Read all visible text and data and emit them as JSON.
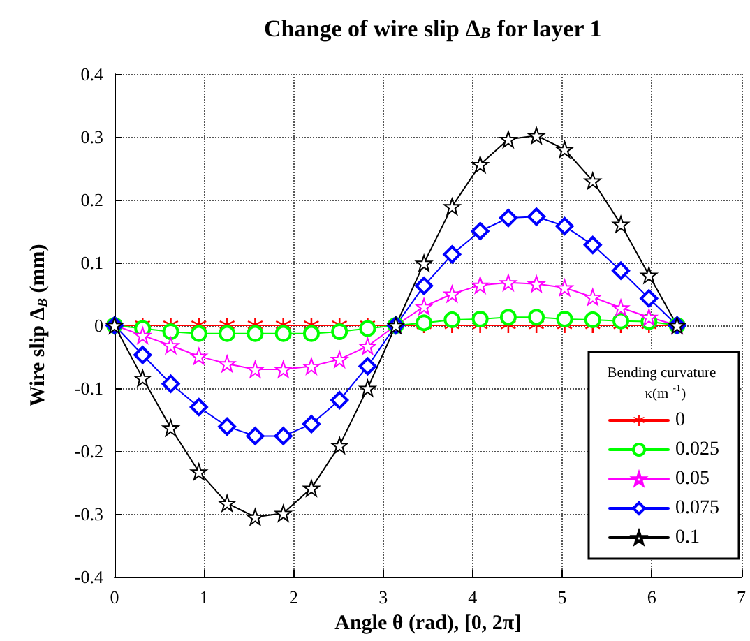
{
  "chart_data": {
    "type": "line",
    "title": "Change of wire slip Δ$_{B}$ for layer 1",
    "xlabel": "Angle θ (rad), [0, 2π]",
    "ylabel": "Wire slip Δ$_{B}$ (mm)",
    "legend_title": "Bending curvature κ(m$^{-1}$)",
    "x": [
      0,
      0.314,
      0.628,
      0.942,
      1.257,
      1.571,
      1.885,
      2.199,
      2.513,
      2.827,
      3.142,
      3.456,
      3.77,
      4.084,
      4.398,
      4.712,
      5.027,
      5.341,
      5.655,
      5.969,
      6.283
    ],
    "series": [
      {
        "name": "0",
        "color": "#ff0000",
        "marker": "cross",
        "values": [
          0,
          0,
          0,
          0,
          0,
          0,
          0,
          0,
          0,
          0,
          0,
          0,
          0,
          0,
          0,
          0,
          0,
          0,
          0,
          0,
          0
        ]
      },
      {
        "name": "0.025",
        "color": "#00ff00",
        "marker": "circle",
        "values": [
          0,
          -0.005,
          -0.01,
          -0.013,
          -0.013,
          -0.013,
          -0.013,
          -0.013,
          -0.01,
          -0.005,
          0,
          0.004,
          0.009,
          0.01,
          0.013,
          0.013,
          0.01,
          0.009,
          0.007,
          0.006,
          0
        ]
      },
      {
        "name": "0.05",
        "color": "#ff00ff",
        "marker": "star",
        "values": [
          0,
          -0.016,
          -0.032,
          -0.049,
          -0.061,
          -0.07,
          -0.07,
          -0.065,
          -0.054,
          -0.033,
          0,
          0.03,
          0.05,
          0.064,
          0.068,
          0.066,
          0.06,
          0.045,
          0.028,
          0.013,
          0
        ]
      },
      {
        "name": "0.075",
        "color": "#0000ff",
        "marker": "diamond",
        "values": [
          0,
          -0.047,
          -0.093,
          -0.13,
          -0.161,
          -0.176,
          -0.176,
          -0.157,
          -0.119,
          -0.065,
          0,
          0.063,
          0.113,
          0.15,
          0.171,
          0.173,
          0.158,
          0.128,
          0.087,
          0.043,
          0
        ]
      },
      {
        "name": "0.1",
        "color": "#000000",
        "marker": "star",
        "values": [
          0,
          -0.084,
          -0.163,
          -0.233,
          -0.283,
          -0.305,
          -0.299,
          -0.259,
          -0.191,
          -0.1,
          0,
          0.099,
          0.189,
          0.256,
          0.296,
          0.302,
          0.28,
          0.23,
          0.161,
          0.08,
          0
        ]
      }
    ],
    "xlim": [
      0,
      7
    ],
    "xticks": [
      0,
      1,
      2,
      3,
      4,
      5,
      6,
      7
    ],
    "ylim": [
      -0.4,
      0.4
    ],
    "yticks": [
      -0.4,
      -0.3,
      -0.2,
      -0.1,
      0,
      0.1,
      0.2,
      0.3,
      0.4
    ],
    "grid": true,
    "legend": "bottom right",
    "line_style": "solid"
  }
}
